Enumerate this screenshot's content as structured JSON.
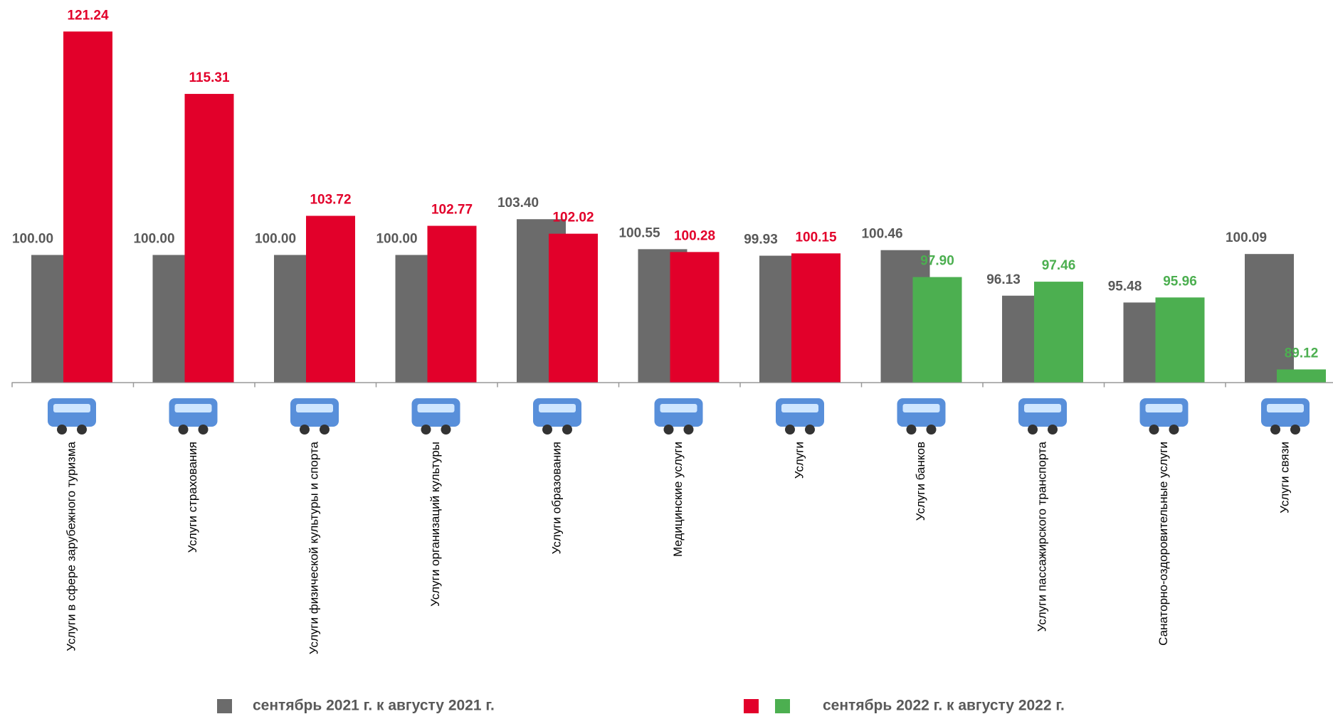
{
  "chart_data": {
    "type": "bar",
    "categories": [
      "Услуги в сфере зарубежного туризма",
      "Услуги страхования",
      "Услуги физической культуры и спорта",
      "Услуги организаций культуры",
      "Услуги образования",
      "Медицинские услуги",
      "Услуги",
      "Услуги банков",
      "Услуги пассажирского транспорта",
      "Санаторно-оздоровительные услуги",
      "Услуги связи"
    ],
    "series": [
      {
        "name": "сентябрь 2021 г. к августу 2021 г.",
        "color": "#6b6b6b",
        "values": [
          100,
          100,
          100,
          100,
          103.4,
          100.55,
          99.93,
          100.46,
          96.13,
          95.48,
          100.09
        ],
        "value_labels": [
          "100.00",
          "100.00",
          "100.00",
          "100.00",
          "103.40",
          "100.55",
          "99.93",
          "100.46",
          "96.13",
          "95.48",
          "100.09"
        ]
      },
      {
        "name": "сентябрь 2022 г. к августу 2022 г.",
        "colors": [
          "#e2002a",
          "#e2002a",
          "#e2002a",
          "#e2002a",
          "#e2002a",
          "#e2002a",
          "#e2002a",
          "#4caf50",
          "#4caf50",
          "#4caf50",
          "#4caf50"
        ],
        "values": [
          121.24,
          115.31,
          103.72,
          102.77,
          102.02,
          100.28,
          100.15,
          97.9,
          97.46,
          95.96,
          89.12
        ],
        "value_labels": [
          "121.24",
          "115.31",
          "103.72",
          "102.77",
          "102.02",
          "100.28",
          "100.15",
          "97.90",
          "97.46",
          "95.96",
          "89.12"
        ]
      }
    ],
    "ylim": [
      87.9,
      124
    ],
    "legend": "bottom"
  }
}
